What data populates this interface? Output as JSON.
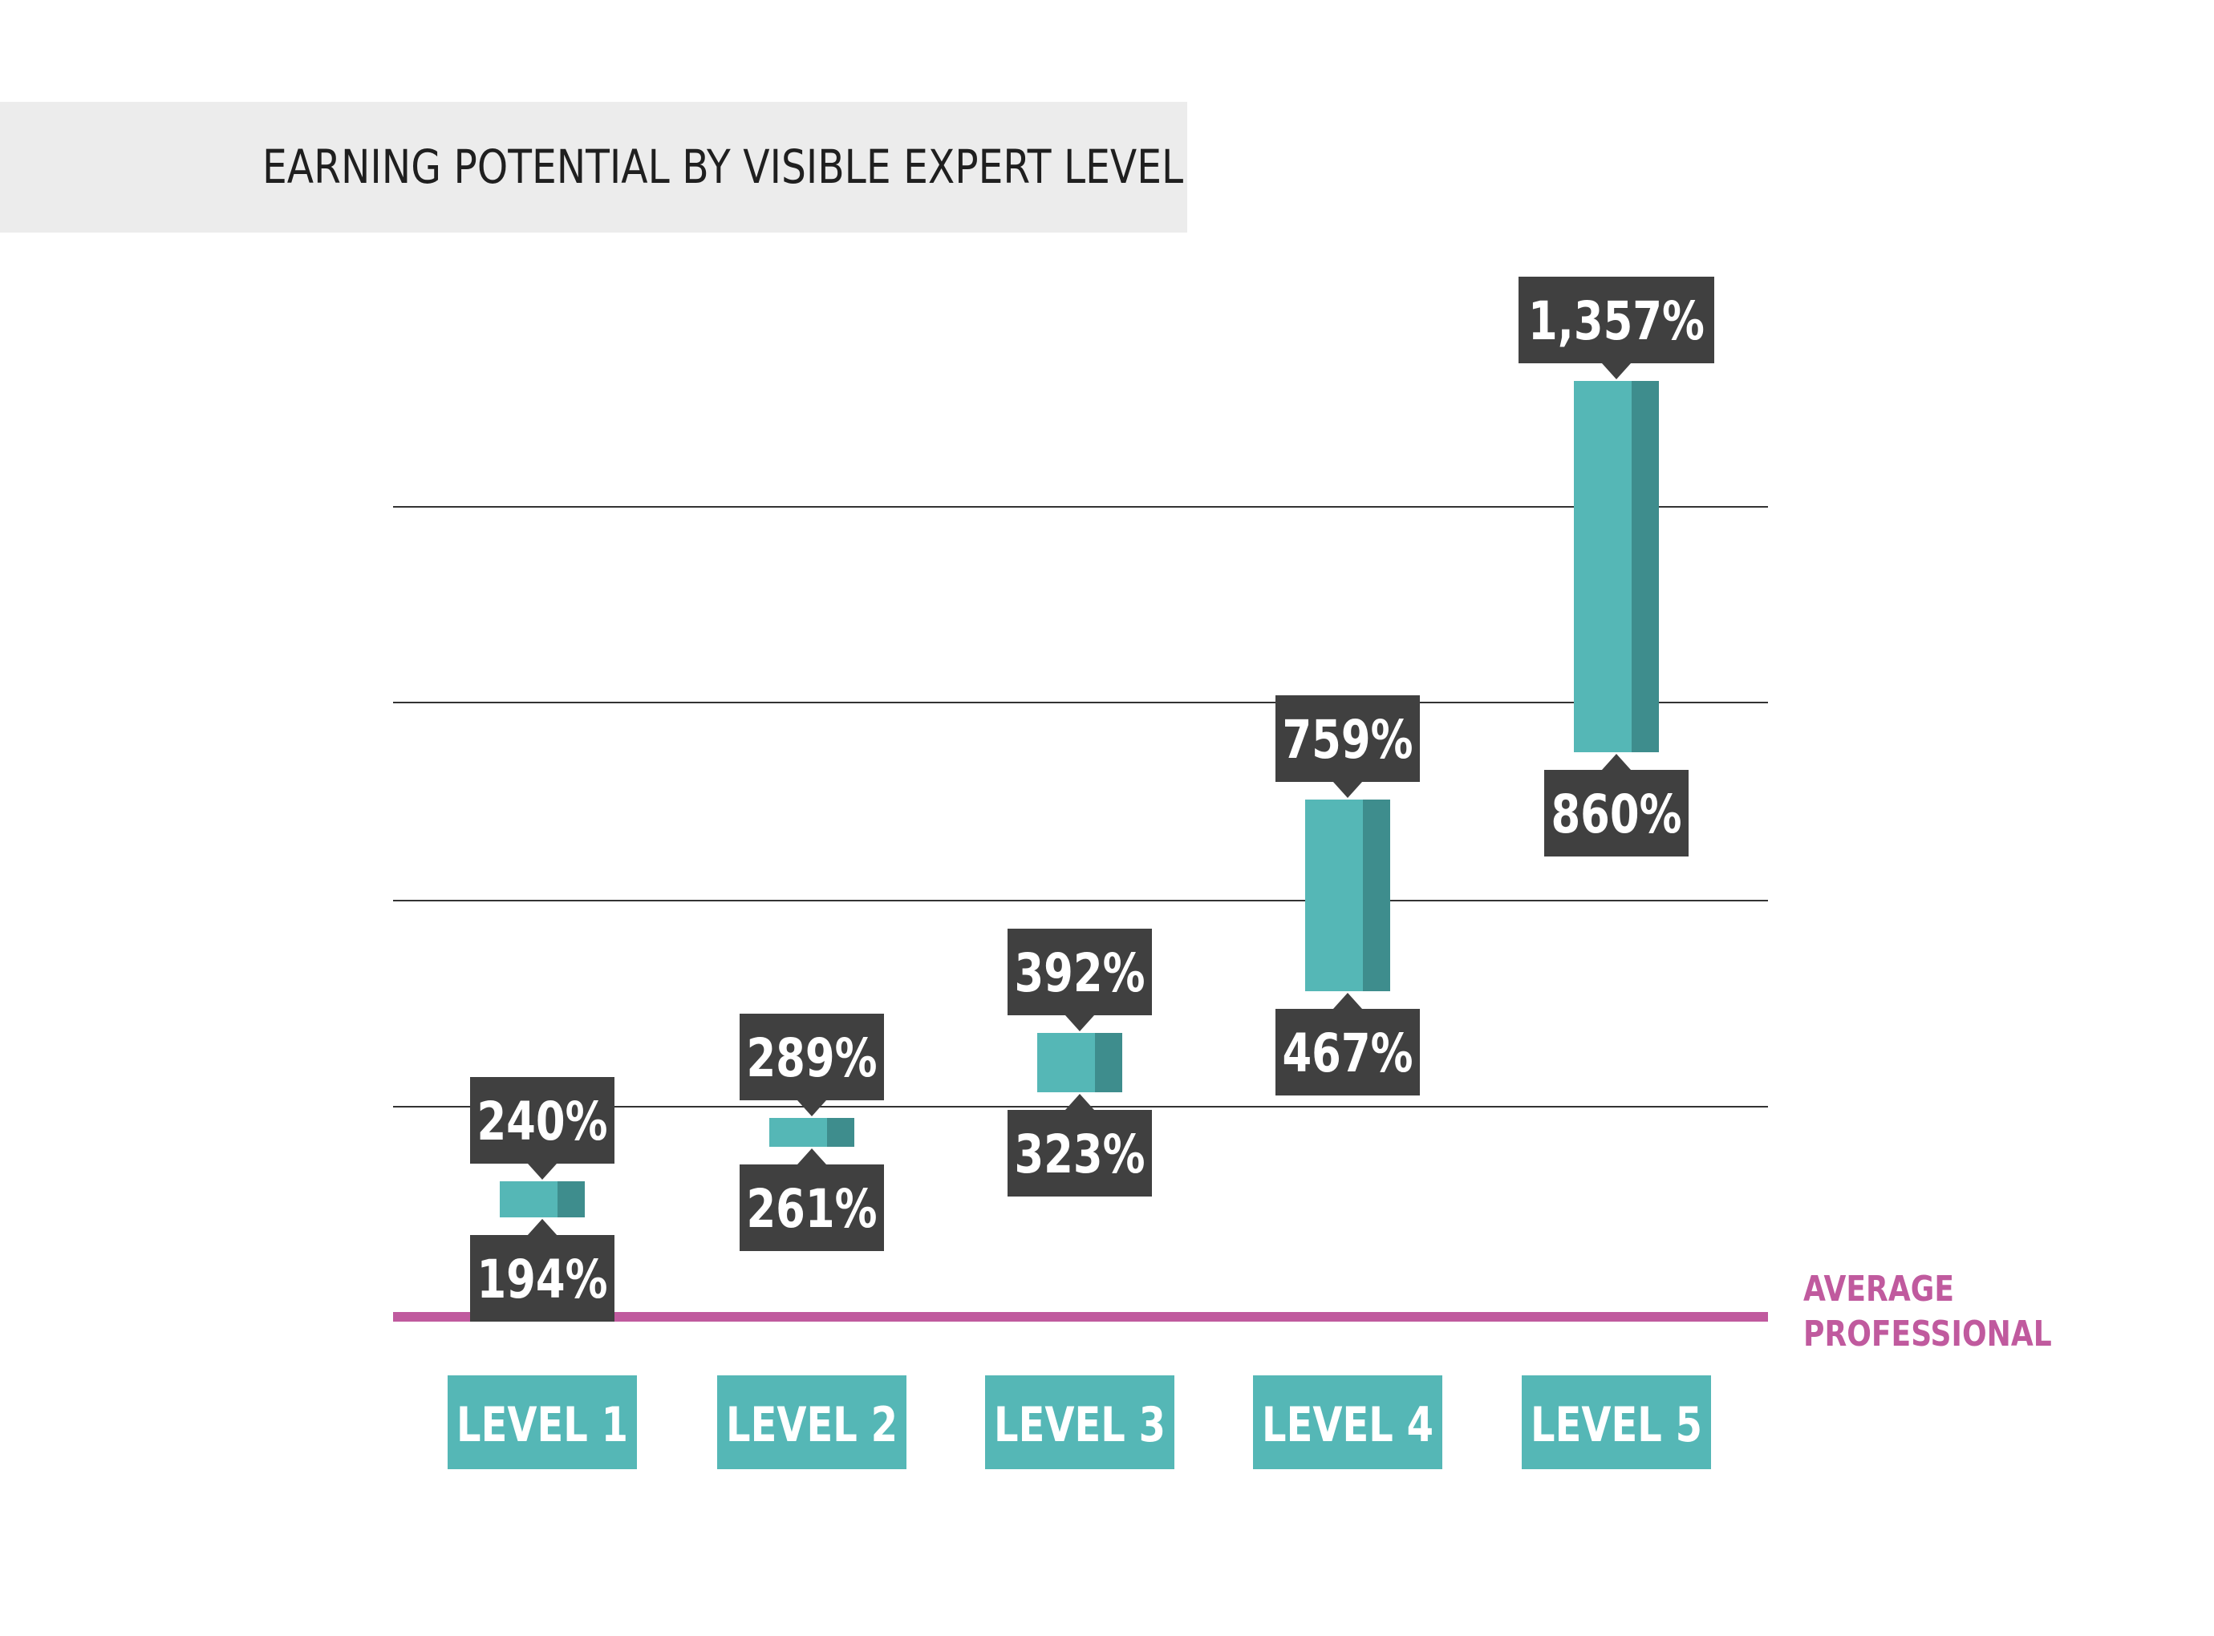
{
  "title": "EARNING POTENTIAL BY VISIBLE EXPERT LEVEL",
  "average_label": [
    "AVERAGE",
    "PROFESSIONAL"
  ],
  "colors": {
    "bar_front": "#55b7b6",
    "bar_side": "#3e8d8d",
    "label_box": "#404040",
    "level_box": "#55b7b6",
    "average_line": "#c05a9e",
    "gridline": "#333333"
  },
  "chart_data": {
    "type": "bar",
    "subtype": "floating-range",
    "title": "EARNING POTENTIAL BY VISIBLE EXPERT LEVEL",
    "baseline": {
      "label": "AVERAGE PROFESSIONAL",
      "value": 100
    },
    "categories": [
      "LEVEL 1",
      "LEVEL 2",
      "LEVEL 3",
      "LEVEL 4",
      "LEVEL 5"
    ],
    "low": [
      194,
      261,
      323,
      467,
      860
    ],
    "high": [
      240,
      289,
      392,
      759,
      1357
    ],
    "low_labels": [
      "194%",
      "261%",
      "323%",
      "467%",
      "860%"
    ],
    "high_labels": [
      "240%",
      "289%",
      "392%",
      "759%",
      "1,357%"
    ],
    "grid": true,
    "legend": "none"
  }
}
